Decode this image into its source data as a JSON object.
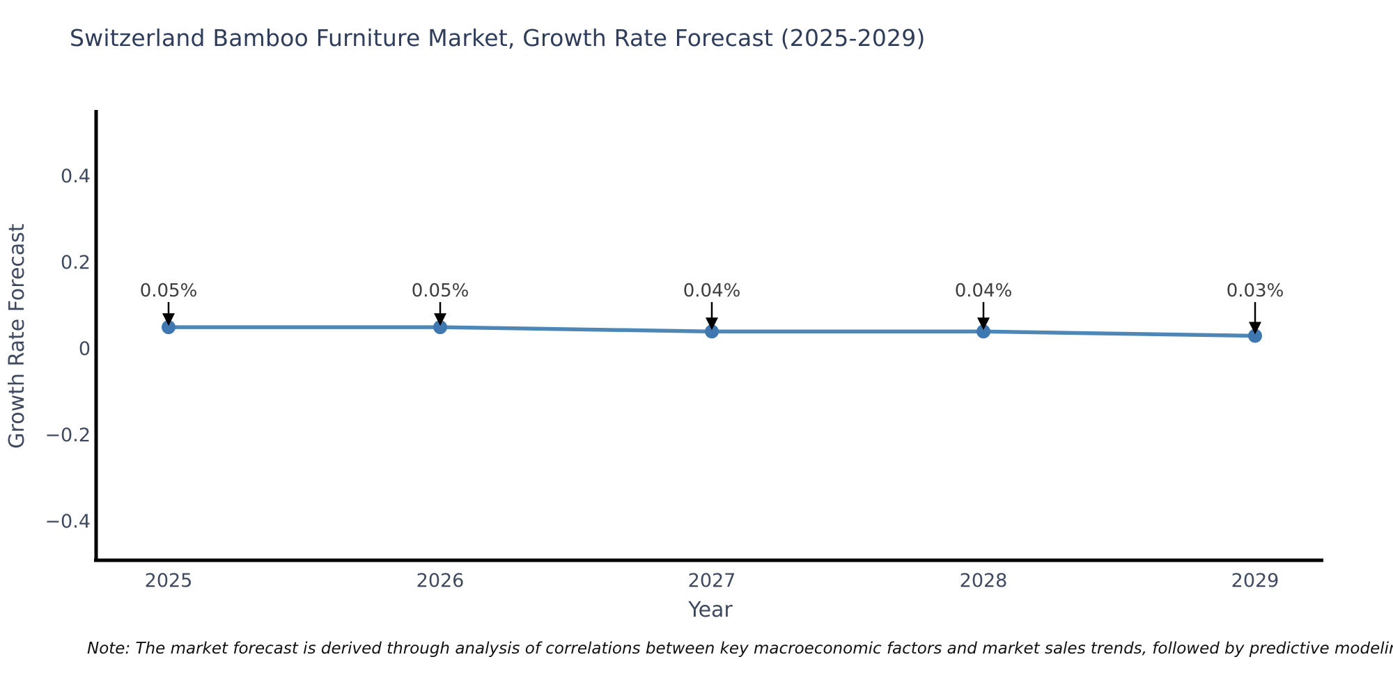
{
  "title": "Switzerland Bamboo Furniture Market, Growth Rate Forecast (2025-2029)",
  "note": "Note: The market forecast is derived through analysis of correlations between key macroeconomic factors and market sales trends, followed by predictive modeling to project future sa",
  "colors": {
    "background": "#ffffff",
    "title": "#2f3d5a",
    "tick": "#3f4a5f",
    "axis_label": "#3f4a5f",
    "line": "#4e87b5",
    "marker": "#3f78b0",
    "annotation": "#3d3d3d",
    "arrow": "#000000",
    "spine": "#000000",
    "note": "#111111"
  },
  "chart_data": {
    "type": "line",
    "title": "Switzerland Bamboo Furniture Market, Growth Rate Forecast (2025-2029)",
    "xlabel": "Year",
    "ylabel": "Growth Rate Forecast",
    "x": [
      2025,
      2026,
      2027,
      2028,
      2029
    ],
    "values": [
      0.05,
      0.05,
      0.04,
      0.04,
      0.03
    ],
    "point_labels": [
      "0.05%",
      "0.05%",
      "0.04%",
      "0.04%",
      "0.03%"
    ],
    "xtick_labels": [
      "2025",
      "2026",
      "2027",
      "2028",
      "2029"
    ],
    "yticks": [
      0.4,
      0.2,
      0,
      -0.2,
      -0.4
    ],
    "ytick_labels": [
      "0.4",
      "0.2",
      "0",
      "−0.2",
      "−0.4"
    ],
    "ylim": [
      -0.49,
      0.55
    ],
    "grid": false,
    "legend": "none",
    "annotation_style": "value label with downward black arrow above each marker"
  }
}
